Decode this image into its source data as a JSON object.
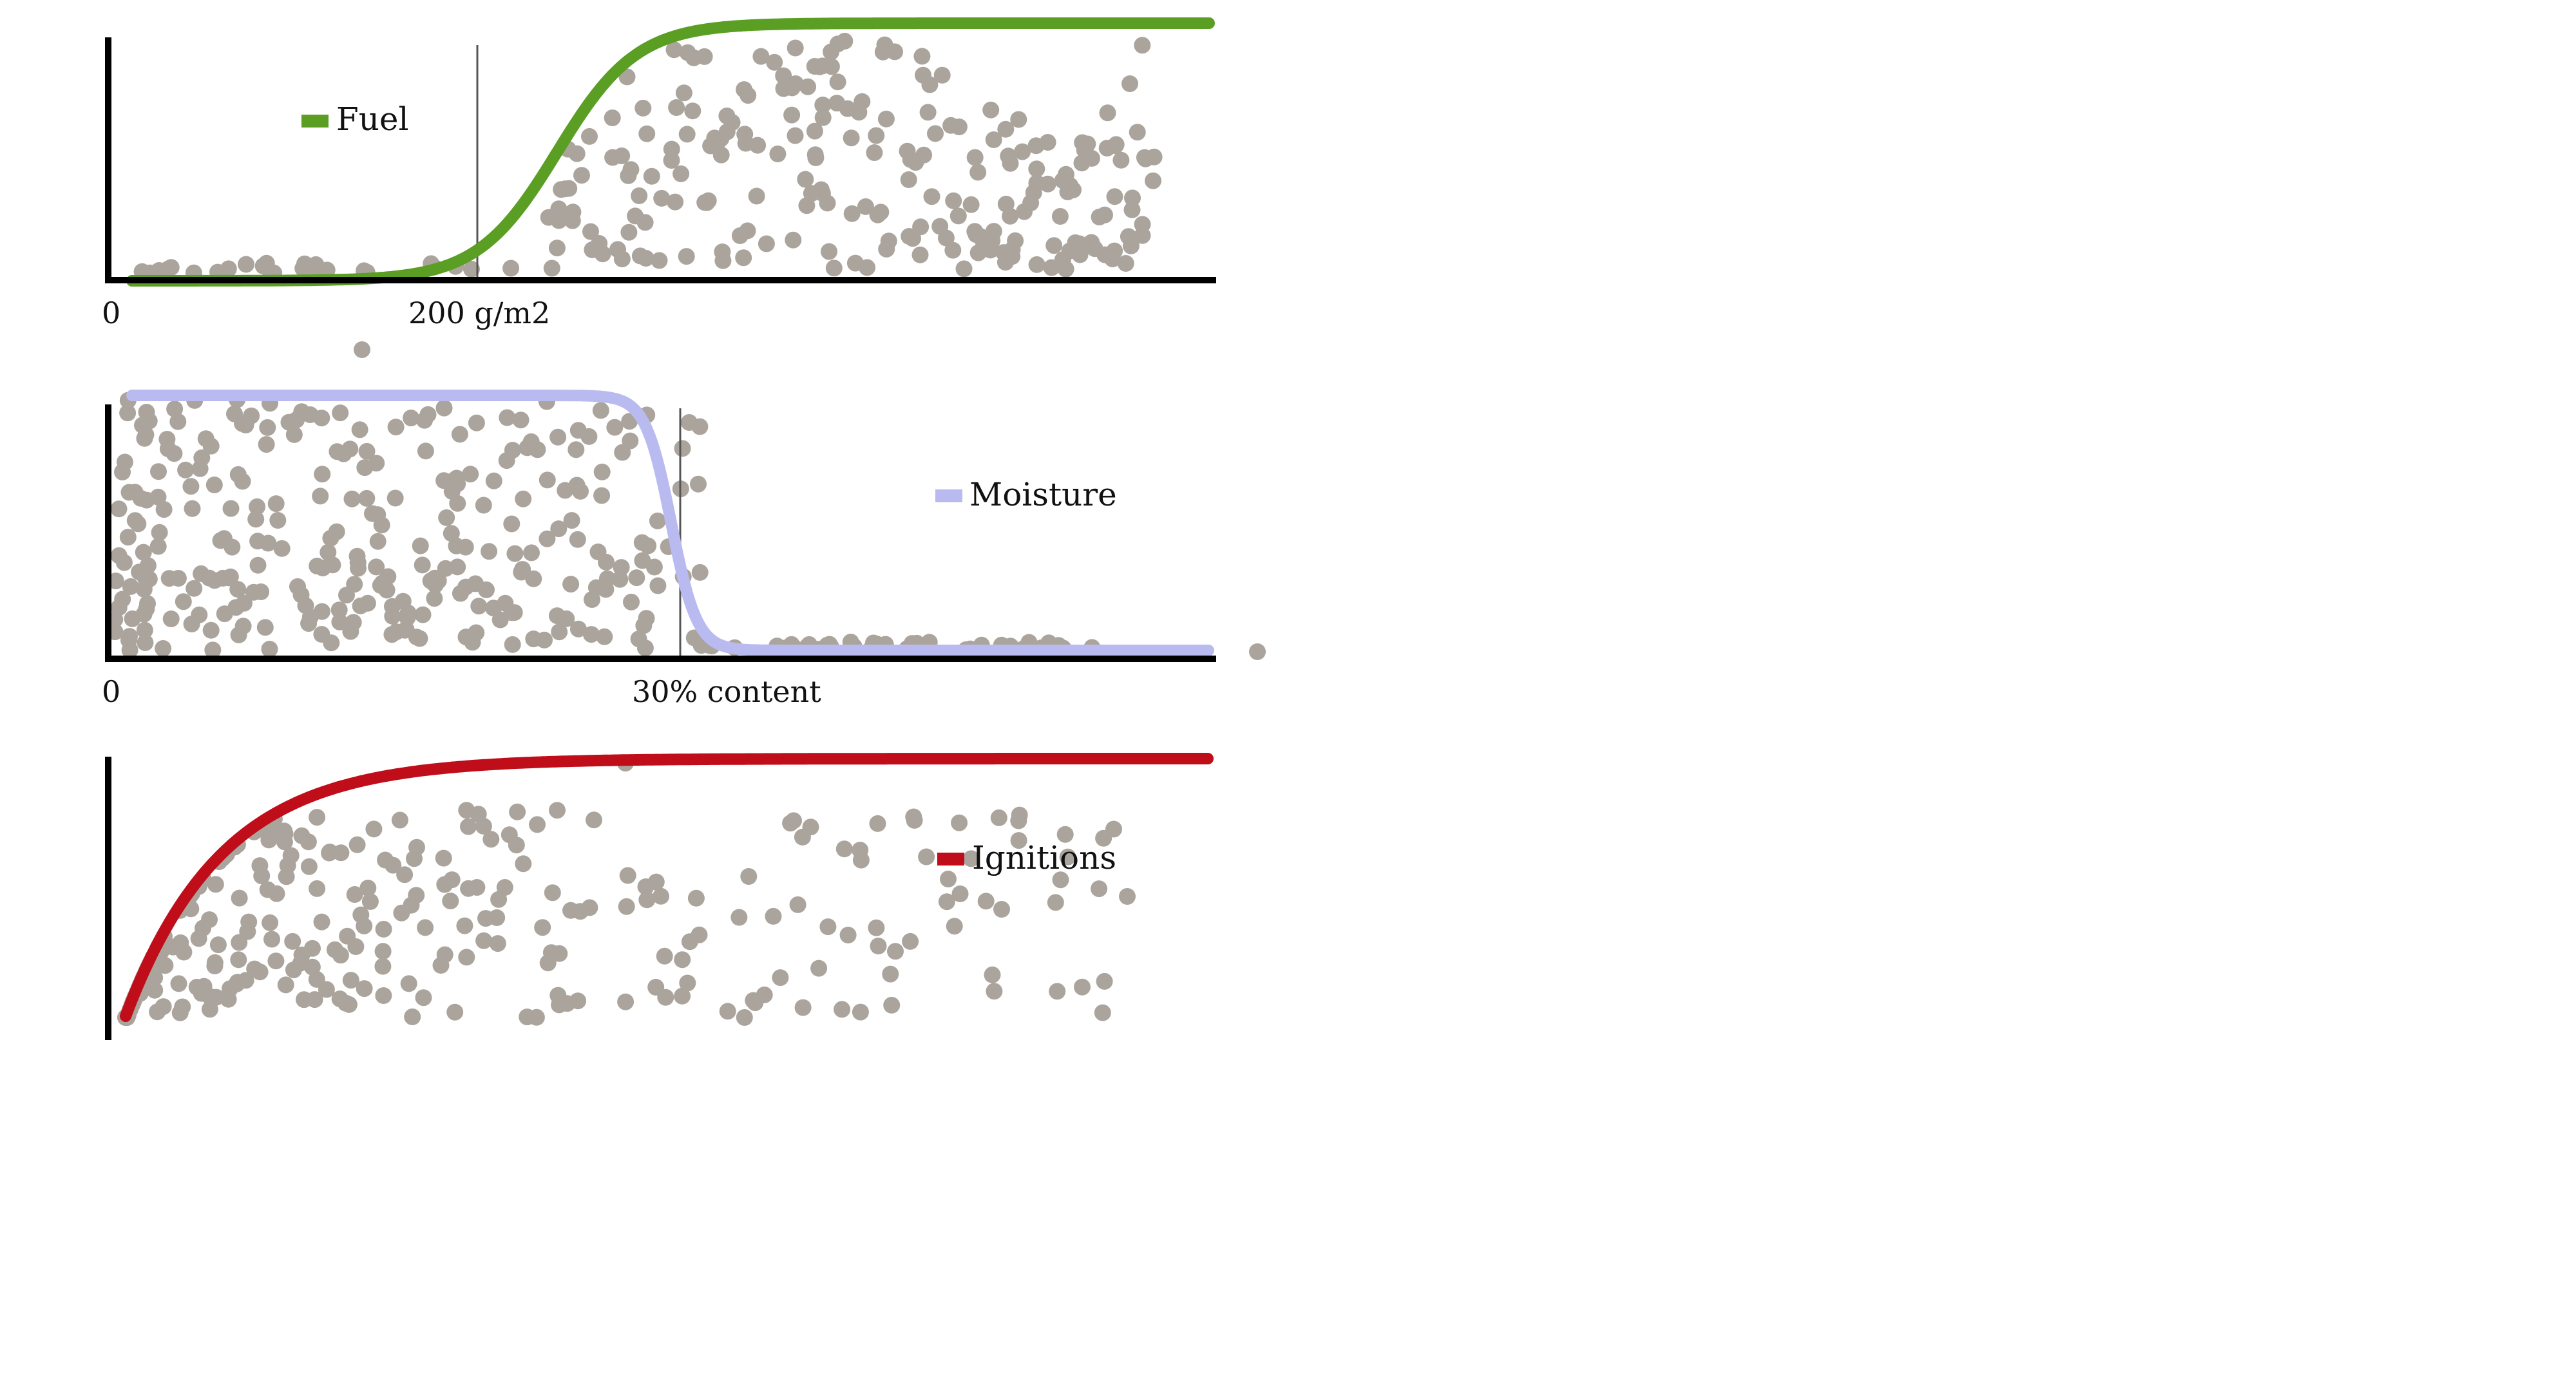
{
  "charts": [
    {
      "key": "fuel",
      "legend_label": "Fuel",
      "color": "#5a9e23",
      "x_tick_labels": [
        "0",
        "200 g/m2"
      ],
      "marker_label": "200 g/m2"
    },
    {
      "key": "moisture",
      "legend_label": "Moisture",
      "color": "#b9bbf0",
      "x_tick_labels": [
        "0",
        "30% content"
      ],
      "marker_label": "30% content"
    },
    {
      "key": "ignitions",
      "legend_label": "Ignitions",
      "color": "#c00d1a",
      "x_tick_labels": []
    }
  ],
  "chart_data": [
    {
      "type": "scatter",
      "title": "",
      "curve": "logistic",
      "series": [
        {
          "name": "Fuel"
        }
      ],
      "x_ticks": [
        "0",
        "200 g/m2"
      ],
      "vertical_marker": "200 g/m2",
      "y_range": [
        0,
        1
      ],
      "curve_points": [
        [
          0,
          0.0
        ],
        [
          100,
          0.02
        ],
        [
          200,
          0.15
        ],
        [
          250,
          0.45
        ],
        [
          300,
          0.8
        ],
        [
          400,
          0.97
        ],
        [
          600,
          1.0
        ]
      ],
      "scatter_color": "#aaa49c"
    },
    {
      "type": "scatter",
      "title": "",
      "curve": "inverse-logistic",
      "series": [
        {
          "name": "Moisture"
        }
      ],
      "x_ticks": [
        "0",
        "30% content"
      ],
      "vertical_marker": "30% content",
      "y_range": [
        0,
        1
      ],
      "curve_points": [
        [
          0,
          1.0
        ],
        [
          20,
          1.0
        ],
        [
          26,
          0.97
        ],
        [
          30,
          0.5
        ],
        [
          34,
          0.05
        ],
        [
          40,
          0.0
        ],
        [
          60,
          0.0
        ]
      ],
      "scatter_color": "#aaa49c"
    },
    {
      "type": "scatter",
      "title": "",
      "curve": "saturating",
      "series": [
        {
          "name": "Ignitions"
        }
      ],
      "x_ticks": [],
      "y_range": [
        0,
        1
      ],
      "curve_points": [
        [
          0,
          0.0
        ],
        [
          0.1,
          0.55
        ],
        [
          0.2,
          0.85
        ],
        [
          0.35,
          0.97
        ],
        [
          0.5,
          0.99
        ],
        [
          1.0,
          1.0
        ]
      ],
      "scatter_color": "#aaa49c"
    }
  ]
}
